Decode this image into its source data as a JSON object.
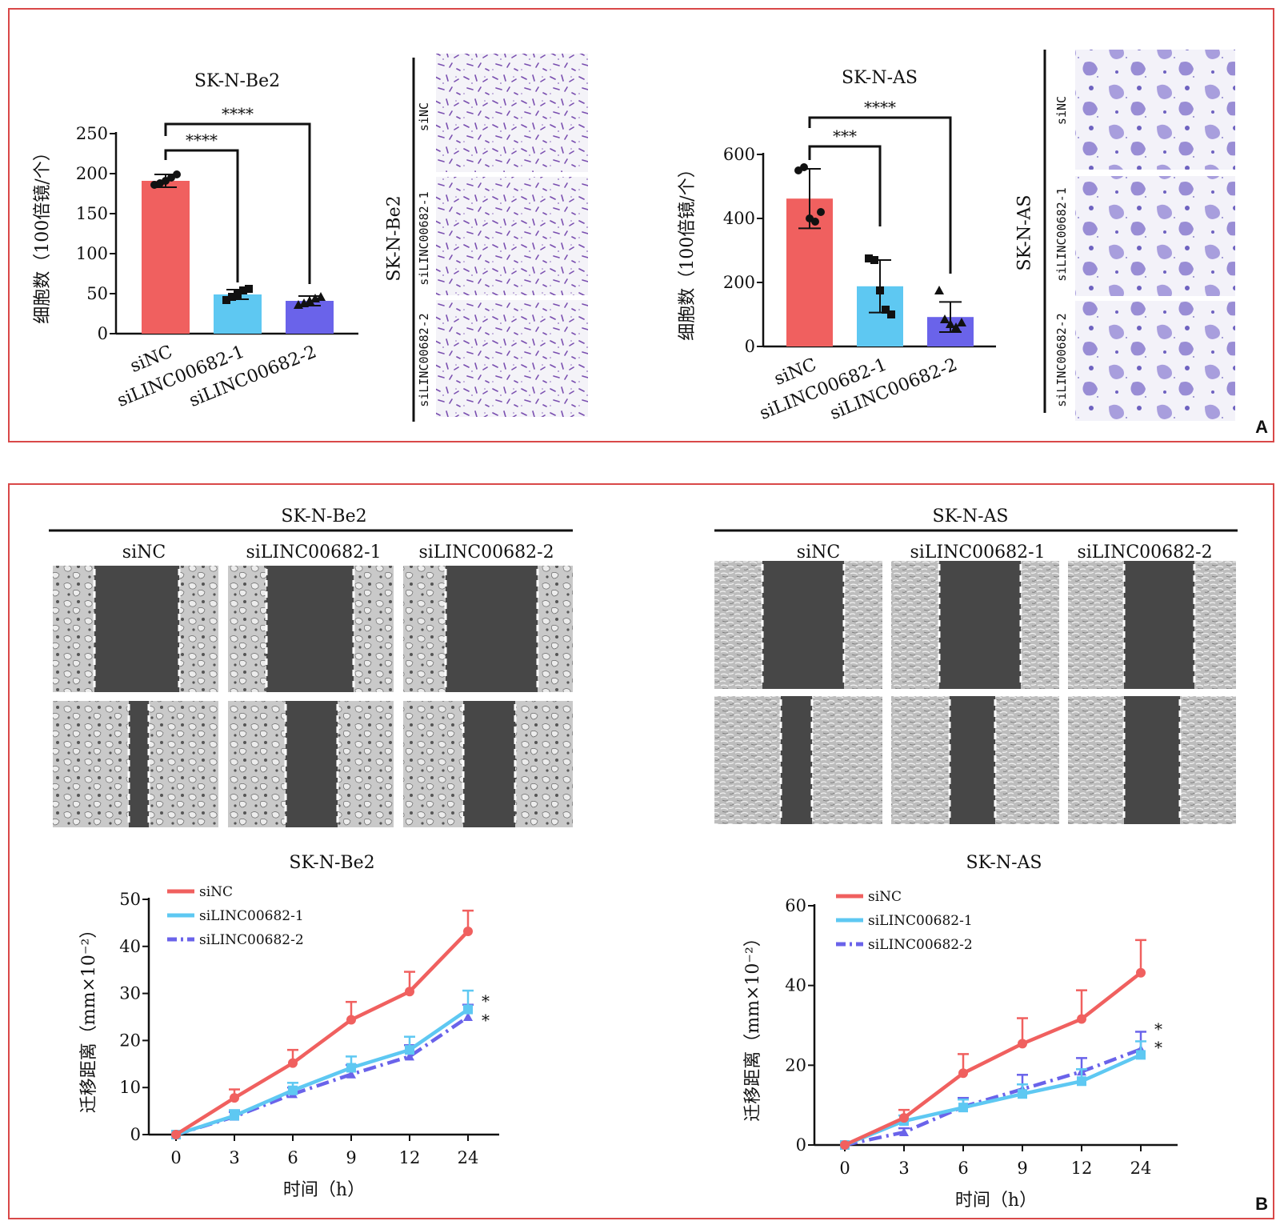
{
  "panels": {
    "a_letter": "A",
    "b_letter": "B"
  },
  "scratch": {
    "be2_title": "SK-N-Be2",
    "be2_group_labels": [
      "siNC",
      "siLINC00682-1",
      "siLINC00682-2"
    ],
    "as_title": "SK-N-AS",
    "as_group_labels": [
      "siNC",
      "siLINC00682-1",
      "siLINC00682-2"
    ]
  },
  "transwell_labels": {
    "be2_side": "SK-N-Be2",
    "be2_rows": [
      "siNC",
      "siLINC00682-1",
      "siLINC00682-2"
    ],
    "as_side": "SK-N-AS",
    "as_rows": [
      "siNC",
      "siLINC00682-1",
      "siLINC00682-2"
    ]
  },
  "colors": {
    "siNC": "#f0605f",
    "siLINC00682-1": "#5ec8f2",
    "siLINC00682-2": "#6a63ea",
    "frame": "#d94848"
  },
  "chart_data": [
    {
      "type": "bar",
      "title": "SK-N-Be2",
      "ylabel": "细胞数（100倍镜/个）",
      "categories": [
        "siNC",
        "siLINC00682-1",
        "siLINC00682-2"
      ],
      "values": [
        191,
        49,
        41
      ],
      "errors": [
        8,
        6,
        6
      ],
      "points": [
        [
          186,
          188,
          191,
          195,
          199
        ],
        [
          42,
          46,
          49,
          54,
          56
        ],
        [
          36,
          38,
          41,
          44,
          46
        ]
      ],
      "point_markers": [
        "circle",
        "square",
        "triangle"
      ],
      "ylim": [
        0,
        250
      ],
      "yticks": [
        0,
        50,
        100,
        150,
        200,
        250
      ],
      "significance": [
        {
          "from": "siNC",
          "to": "siLINC00682-1",
          "label": "****"
        },
        {
          "from": "siNC",
          "to": "siLINC00682-2",
          "label": "****"
        }
      ]
    },
    {
      "type": "bar",
      "title": "SK-N-AS",
      "ylabel": "细胞数（100倍镜/个）",
      "categories": [
        "siNC",
        "siLINC00682-1",
        "siLINC00682-2"
      ],
      "values": [
        462,
        188,
        92
      ],
      "errors": [
        93,
        82,
        47
      ],
      "points": [
        [
          550,
          560,
          400,
          390,
          420
        ],
        [
          275,
          270,
          175,
          115,
          100
        ],
        [
          175,
          85,
          70,
          60,
          75
        ]
      ],
      "point_markers": [
        "circle",
        "square",
        "triangle"
      ],
      "ylim": [
        0,
        600
      ],
      "yticks": [
        0,
        200,
        400,
        600
      ],
      "significance": [
        {
          "from": "siNC",
          "to": "siLINC00682-1",
          "label": "***"
        },
        {
          "from": "siNC",
          "to": "siLINC00682-2",
          "label": "****"
        }
      ]
    },
    {
      "type": "line",
      "title": "SK-N-Be2",
      "xlabel": "时间（h）",
      "ylabel": "迁移距离（mm×10⁻²）",
      "x": [
        "0",
        "3",
        "6",
        "9",
        "12",
        "24"
      ],
      "ylim": [
        0,
        50
      ],
      "yticks": [
        0,
        10,
        20,
        30,
        40,
        50
      ],
      "series": [
        {
          "name": "siNC",
          "values": [
            0,
            7.8,
            15.2,
            24.4,
            30.4,
            43.2
          ],
          "errors": [
            0,
            1.8,
            2.8,
            3.8,
            4.2,
            4.4
          ],
          "style": "solid"
        },
        {
          "name": "siLINC00682-1",
          "values": [
            0,
            4.0,
            9.4,
            14.2,
            18.0,
            26.6
          ],
          "errors": [
            0,
            1.2,
            1.6,
            2.4,
            2.8,
            4.0
          ],
          "style": "solid"
        },
        {
          "name": "siLINC00682-2",
          "values": [
            0,
            3.8,
            8.6,
            12.8,
            16.6,
            25.0
          ],
          "errors": [
            0,
            1.0,
            1.4,
            2.0,
            2.4,
            2.6
          ],
          "style": "dashdot"
        }
      ],
      "significance_labels": [
        "*",
        "*"
      ],
      "legend": "top-left"
    },
    {
      "type": "line",
      "title": "SK-N-AS",
      "xlabel": "时间（h）",
      "ylabel": "迁移距离（mm×10⁻²）",
      "x": [
        "0",
        "3",
        "6",
        "9",
        "12",
        "24"
      ],
      "ylim": [
        0,
        60
      ],
      "yticks": [
        0,
        20,
        40,
        60
      ],
      "series": [
        {
          "name": "siNC",
          "values": [
            0,
            6.8,
            18.0,
            25.4,
            31.6,
            43.2
          ],
          "errors": [
            0,
            2.0,
            4.8,
            6.4,
            7.2,
            8.2
          ],
          "style": "solid"
        },
        {
          "name": "siLINC00682-1",
          "values": [
            0,
            6.0,
            9.4,
            12.8,
            16.0,
            22.6
          ],
          "errors": [
            0,
            1.4,
            2.0,
            2.4,
            3.0,
            3.4
          ],
          "style": "solid"
        },
        {
          "name": "siLINC00682-2",
          "values": [
            0,
            3.2,
            9.6,
            14.0,
            18.4,
            24.0
          ],
          "errors": [
            0,
            1.0,
            2.2,
            3.6,
            3.4,
            4.4
          ],
          "style": "dashdot"
        }
      ],
      "significance_labels": [
        "*",
        "*"
      ],
      "legend": "top-left"
    }
  ]
}
